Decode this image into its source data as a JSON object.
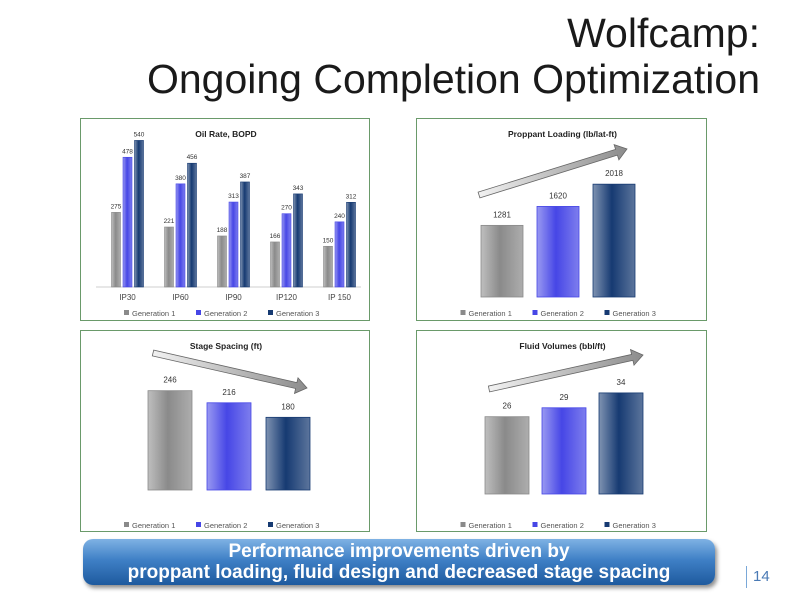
{
  "slide": {
    "title_line1": "Wolfcamp:",
    "title_line2": "Ongoing Completion Optimization",
    "banner_line1": "Performance improvements driven by",
    "banner_line2": "proppant loading, fluid design and decreased stage spacing",
    "page_number": "14"
  },
  "colors": {
    "gen1": "#8a8a8a",
    "gen2": "#4646e6",
    "gen3": "#163a72",
    "panel_border": "#6a9a6a",
    "banner": "#3f80c6"
  },
  "chart_data": [
    {
      "type": "bar",
      "title": "Oil Rate, BOPD",
      "categories": [
        "IP30",
        "IP60",
        "IP90",
        "IP120",
        "IP 150"
      ],
      "series": [
        {
          "name": "Generation 1",
          "values": [
            275,
            221,
            188,
            166,
            150
          ]
        },
        {
          "name": "Generation 2",
          "values": [
            478,
            380,
            313,
            270,
            240
          ]
        },
        {
          "name": "Generation 3",
          "values": [
            540,
            456,
            387,
            343,
            312
          ]
        }
      ],
      "ylim": [
        0,
        560
      ],
      "legend": "bottom",
      "grid": false
    },
    {
      "type": "bar",
      "title": "Proppant Loading (lb/lat-ft)",
      "categories": [
        "Generation 1",
        "Generation 2",
        "Generation 3"
      ],
      "values": [
        1281,
        1620,
        2018
      ],
      "ylim": [
        0,
        2200
      ],
      "trend_arrow": "up",
      "legend": "bottom",
      "grid": false
    },
    {
      "type": "bar",
      "title": "Stage Spacing (ft)",
      "categories": [
        "Generation 1",
        "Generation 2",
        "Generation 3"
      ],
      "values": [
        246,
        216,
        180
      ],
      "ylim": [
        0,
        265
      ],
      "trend_arrow": "down",
      "legend": "bottom",
      "grid": false
    },
    {
      "type": "bar",
      "title": "Fluid Volumes (bbl/ft)",
      "categories": [
        "Generation 1",
        "Generation 2",
        "Generation 3"
      ],
      "values": [
        26,
        29,
        34
      ],
      "ylim": [
        0,
        37
      ],
      "trend_arrow": "up",
      "legend": "bottom",
      "grid": false
    }
  ]
}
